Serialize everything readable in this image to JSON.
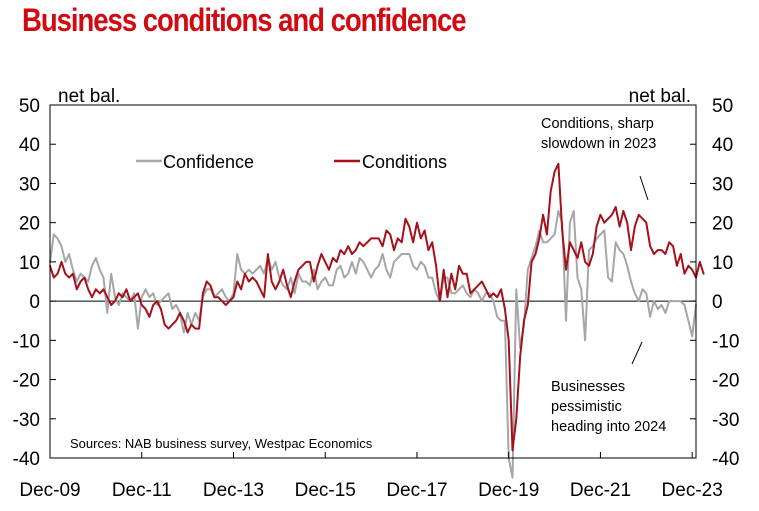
{
  "chart_data": {
    "type": "line",
    "title": "Business conditions and confidence",
    "ylabel_left": "net bal.",
    "ylabel_right": "net bal.",
    "ylim": [
      -40,
      50
    ],
    "yticks": [
      "50",
      "40",
      "30",
      "20",
      "10",
      "0",
      "-10",
      "-20",
      "-30",
      "-40"
    ],
    "ytick_values": [
      50,
      40,
      30,
      20,
      10,
      0,
      -10,
      -20,
      -30,
      -40
    ],
    "xrange": [
      0,
      169
    ],
    "xtick_labels": [
      "Dec-09",
      "Dec-11",
      "Dec-13",
      "Dec-15",
      "Dec-17",
      "Dec-19",
      "Dec-21",
      "Dec-23"
    ],
    "xtick_values": [
      0,
      24,
      48,
      72,
      96,
      120,
      144,
      168
    ],
    "source": "Sources: NAB business survey, Westpac Economics",
    "legend": [
      {
        "name": "Confidence",
        "color": "#a6a6a6"
      },
      {
        "name": "Conditions",
        "color": "#a6101a"
      }
    ],
    "annotations": [
      {
        "lines": [
          "Conditions, sharp",
          "slowdown in 2023"
        ]
      },
      {
        "lines": [
          "Businesses",
          "pessimistic",
          "heading into 2024"
        ]
      }
    ],
    "series": [
      {
        "name": "Confidence",
        "color": "#a6a6a6",
        "values": [
          10,
          17,
          16,
          14,
          10,
          12,
          8,
          5,
          7,
          6,
          5,
          9,
          11,
          8,
          6,
          -3,
          7,
          1,
          -1,
          2,
          1,
          0,
          2,
          -7,
          1,
          3,
          1,
          2,
          -1,
          0,
          1,
          2,
          -2,
          -1,
          -3,
          -8,
          -3,
          -6,
          -3,
          -5,
          1,
          3,
          3,
          1,
          2,
          3,
          1,
          0,
          2,
          12,
          8,
          7,
          8,
          7,
          8,
          9,
          7,
          11,
          8,
          10,
          6,
          4,
          3,
          6,
          2,
          7,
          5,
          5,
          4,
          8,
          3,
          5,
          6,
          4,
          4,
          8,
          9,
          6,
          7,
          10,
          7,
          11,
          10,
          8,
          6,
          8,
          9,
          12,
          8,
          6,
          10,
          11,
          12,
          12,
          12,
          9,
          8,
          10,
          9,
          6,
          6,
          2,
          0,
          6,
          6,
          2,
          2,
          3,
          4,
          2,
          1,
          3,
          2,
          0,
          2,
          2,
          0,
          -4,
          -5,
          -5,
          -40,
          -45,
          3,
          -12,
          -6,
          8,
          11,
          14,
          18,
          15,
          15,
          16,
          17,
          23,
          20,
          -5,
          20,
          23,
          6,
          3,
          -10,
          13,
          14,
          16,
          17,
          18,
          6,
          5,
          15,
          13,
          12,
          9,
          5,
          2,
          0,
          3,
          2,
          -4,
          0,
          -2,
          -1,
          -3,
          0,
          0,
          0,
          0,
          -1,
          -5,
          -9,
          -1
        ]
      },
      {
        "name": "Conditions",
        "color": "#a6101a",
        "values": [
          9,
          6,
          7,
          10,
          7,
          6,
          7,
          3,
          5,
          6,
          3,
          1,
          3,
          2,
          3,
          1,
          -1,
          0,
          2,
          1,
          3,
          0,
          1,
          2,
          -1,
          -2,
          -4,
          -1,
          0,
          -2,
          -6,
          -7,
          -6,
          -5,
          -3,
          -5,
          -8,
          -6,
          -7,
          -7,
          2,
          5,
          4,
          1,
          1,
          0,
          -1,
          0,
          1,
          5,
          3,
          7,
          5,
          6,
          5,
          3,
          1,
          12,
          5,
          3,
          5,
          8,
          4,
          1,
          5,
          8,
          9,
          10,
          10,
          5,
          9,
          12,
          10,
          8,
          11,
          10,
          13,
          12,
          14,
          12,
          13,
          15,
          14,
          15,
          16,
          16,
          16,
          14,
          18,
          17,
          13,
          16,
          15,
          21,
          19,
          15,
          20,
          16,
          18,
          13,
          15,
          9,
          0,
          8,
          1,
          7,
          3,
          9,
          7,
          7,
          2,
          3,
          4,
          5,
          3,
          1,
          2,
          1,
          3,
          -2,
          -10,
          -38,
          -30,
          -14,
          -5,
          -1,
          10,
          12,
          16,
          22,
          17,
          28,
          33,
          35,
          18,
          8,
          15,
          13,
          11,
          15,
          10,
          9,
          12,
          19,
          22,
          20,
          21,
          22,
          24,
          19,
          23,
          20,
          13,
          19,
          22,
          21,
          20,
          14,
          12,
          13,
          13,
          12,
          15,
          14,
          9,
          12,
          7,
          9,
          8,
          6,
          10,
          7
        ]
      }
    ]
  }
}
